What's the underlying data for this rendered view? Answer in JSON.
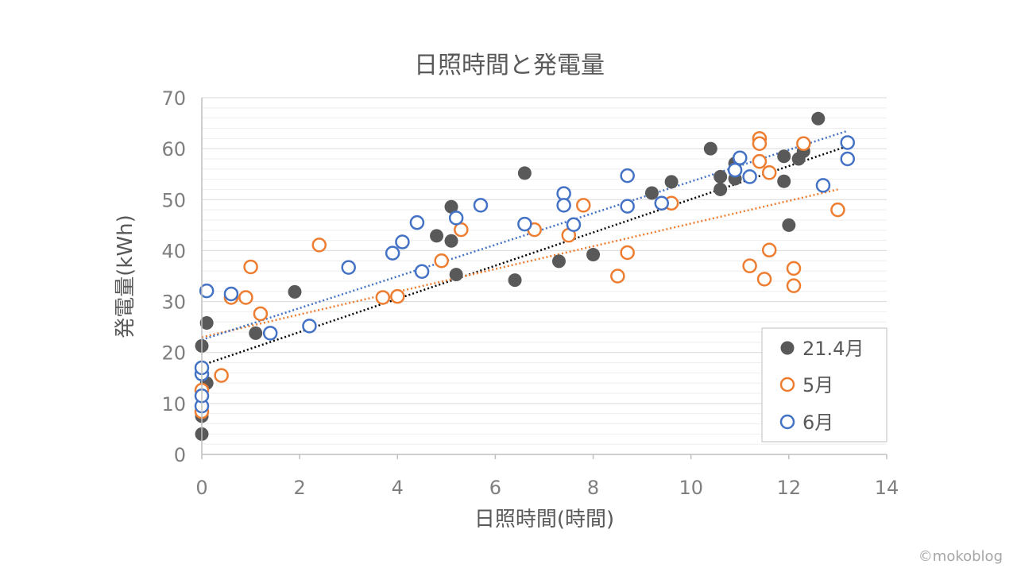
{
  "watermark": "©mokoblog",
  "colors": {
    "series_2104": "#595959",
    "series_05": "#ed7d31",
    "series_06": "#4472c4",
    "trend_2104": "#000000",
    "grid_major": "#d9d9d9",
    "grid_minor": "#eeeeee",
    "text": "#595959"
  },
  "chart_data": {
    "type": "scatter",
    "title": "日照時間と発電量",
    "xlabel": "日照時間(時間)",
    "ylabel": "発電量(kWh)",
    "xlim": [
      0,
      14
    ],
    "ylim": [
      0,
      70
    ],
    "x_ticks": [
      "0",
      "2",
      "4",
      "6",
      "8",
      "10",
      "12",
      "14"
    ],
    "y_ticks": [
      "0",
      "10",
      "20",
      "30",
      "40",
      "50",
      "60",
      "70"
    ],
    "grid": "horizontal major and minor",
    "legend_position": "bottom-right",
    "series": [
      {
        "name": "21.4月",
        "marker": "filled-circle",
        "color": "#595959",
        "trendline": {
          "from": [
            0,
            17.5
          ],
          "to": [
            13.2,
            60.5
          ]
        },
        "points": [
          [
            0.0,
            4
          ],
          [
            0.0,
            7.5
          ],
          [
            0.0,
            21.3
          ],
          [
            0.1,
            14
          ],
          [
            0.1,
            25.8
          ],
          [
            1.1,
            23.8
          ],
          [
            1.9,
            31.9
          ],
          [
            4.8,
            42.9
          ],
          [
            5.1,
            48.6
          ],
          [
            5.1,
            41.9
          ],
          [
            5.2,
            35.3
          ],
          [
            6.4,
            34.2
          ],
          [
            6.6,
            55.2
          ],
          [
            7.3,
            37.9
          ],
          [
            8.0,
            39.2
          ],
          [
            9.2,
            51.3
          ],
          [
            9.6,
            53.5
          ],
          [
            10.4,
            60.0
          ],
          [
            10.6,
            54.5
          ],
          [
            10.6,
            52.0
          ],
          [
            10.9,
            54.1
          ],
          [
            10.9,
            57.1
          ],
          [
            11.9,
            53.6
          ],
          [
            11.9,
            58.5
          ],
          [
            12.0,
            45.0
          ],
          [
            12.2,
            58.0
          ],
          [
            12.3,
            59.5
          ],
          [
            12.6,
            65.9
          ]
        ]
      },
      {
        "name": "5月",
        "marker": "hollow-circle",
        "color": "#ed7d31",
        "trendline": {
          "from": [
            0,
            23.0
          ],
          "to": [
            13.0,
            52.0
          ]
        },
        "points": [
          [
            0.0,
            8.4
          ],
          [
            0.0,
            12.6
          ],
          [
            0.4,
            15.5
          ],
          [
            0.6,
            30.8
          ],
          [
            0.9,
            30.8
          ],
          [
            1.0,
            36.8
          ],
          [
            1.2,
            27.6
          ],
          [
            2.4,
            41.1
          ],
          [
            3.7,
            30.8
          ],
          [
            4.0,
            31.0
          ],
          [
            4.9,
            38.0
          ],
          [
            5.3,
            44.1
          ],
          [
            6.8,
            44.1
          ],
          [
            7.5,
            43.0
          ],
          [
            7.8,
            48.9
          ],
          [
            8.5,
            35.0
          ],
          [
            8.7,
            39.6
          ],
          [
            9.6,
            49.3
          ],
          [
            11.2,
            37.0
          ],
          [
            11.4,
            62.0
          ],
          [
            11.4,
            61.0
          ],
          [
            11.4,
            57.5
          ],
          [
            11.5,
            34.4
          ],
          [
            11.6,
            55.3
          ],
          [
            11.6,
            40.1
          ],
          [
            12.1,
            36.5
          ],
          [
            12.1,
            33.1
          ],
          [
            12.3,
            61.0
          ],
          [
            13.0,
            48.0
          ]
        ]
      },
      {
        "name": "6月",
        "marker": "hollow-circle",
        "color": "#4472c4",
        "trendline": {
          "from": [
            0,
            22.5
          ],
          "to": [
            13.2,
            63.5
          ]
        },
        "points": [
          [
            0.0,
            9.5
          ],
          [
            0.0,
            11.5
          ],
          [
            0.0,
            15.8
          ],
          [
            0.0,
            17.0
          ],
          [
            0.1,
            32.1
          ],
          [
            0.6,
            31.5
          ],
          [
            1.4,
            23.8
          ],
          [
            2.2,
            25.2
          ],
          [
            3.0,
            36.7
          ],
          [
            3.9,
            39.5
          ],
          [
            4.1,
            41.7
          ],
          [
            4.4,
            45.5
          ],
          [
            4.5,
            35.9
          ],
          [
            5.2,
            46.4
          ],
          [
            5.7,
            48.9
          ],
          [
            6.6,
            45.2
          ],
          [
            7.4,
            51.2
          ],
          [
            7.4,
            48.9
          ],
          [
            7.6,
            45.1
          ],
          [
            8.7,
            54.7
          ],
          [
            8.7,
            48.7
          ],
          [
            9.4,
            49.3
          ],
          [
            10.9,
            55.8
          ],
          [
            11.0,
            58.2
          ],
          [
            11.2,
            54.5
          ],
          [
            12.7,
            52.8
          ],
          [
            13.2,
            61.2
          ],
          [
            13.2,
            58.0
          ]
        ]
      }
    ]
  }
}
